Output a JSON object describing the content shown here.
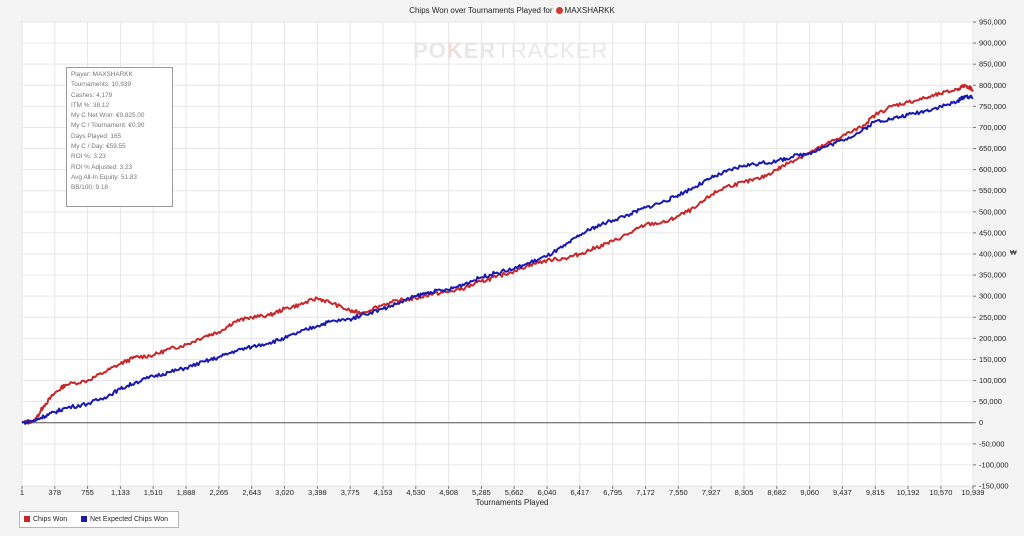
{
  "window": {
    "title": "Chips Won over Tournaments Played for",
    "player_tag": "MAXSHARKK",
    "brand_a": "PO",
    "brand_k": "K",
    "brand_b": "ER",
    "brand_c": "TRACKER",
    "y_unit": "₩"
  },
  "stats": [
    "Player: MAXSHARKK",
    "Tournaments: 10,939",
    "Cashes: 4,179",
    "ITM %: 38.12",
    "My C Net Won: €9,825.00",
    "My C / Tournament: €0.90",
    "Days Played: 165",
    "My C / Day: €59.55",
    "ROI %: 3.23",
    "ROI % Adjusted: 3.23",
    "Avg All-In Equity: 51.83",
    "BB/100: 9.18"
  ],
  "legend": {
    "chips_won": "Chips Won",
    "net_expected": "Net Expected Chips Won"
  },
  "colors": {
    "chips_won": "#c8282a",
    "net_expected": "#1a1ab0",
    "grid": "#e6e6e6",
    "zero_line": "#555555"
  },
  "chart_data": {
    "type": "line",
    "title": "Chips Won over Tournaments Played for MAXSHARKK",
    "xlabel": "Tournaments Played",
    "ylabel": "",
    "xlim": [
      1,
      10939
    ],
    "ylim": [
      -150000,
      950000
    ],
    "x_ticks": [
      1,
      378,
      755,
      1133,
      1510,
      1888,
      2265,
      2643,
      3020,
      3398,
      3775,
      4153,
      4530,
      4908,
      5285,
      5662,
      6040,
      6417,
      6795,
      7172,
      7550,
      7927,
      8305,
      8682,
      9060,
      9437,
      9815,
      10192,
      10570,
      10939
    ],
    "x_tick_labels": [
      "1",
      "378",
      "755",
      "1,133",
      "1,510",
      "1,888",
      "2,265",
      "2,643",
      "3,020",
      "3,398",
      "3,775",
      "4,153",
      "4,530",
      "4,908",
      "5,285",
      "5,662",
      "6,040",
      "6,417",
      "6,795",
      "7,172",
      "7,550",
      "7,927",
      "8,305",
      "8,682",
      "9,060",
      "9,437",
      "9,815",
      "10,192",
      "10,570",
      "10,939"
    ],
    "y_ticks": [
      -150000,
      -100000,
      -50000,
      0,
      50000,
      100000,
      150000,
      200000,
      250000,
      300000,
      350000,
      400000,
      450000,
      500000,
      550000,
      600000,
      650000,
      700000,
      750000,
      800000,
      850000,
      900000,
      950000
    ],
    "y_tick_labels": [
      "-150,000",
      "-100,000",
      "-50,000",
      "0",
      "50,000",
      "100,000",
      "150,000",
      "200,000",
      "250,000",
      "300,000",
      "350,000",
      "400,000",
      "450,000",
      "500,000",
      "550,000",
      "600,000",
      "650,000",
      "700,000",
      "750,000",
      "800,000",
      "850,000",
      "900,000",
      "950,000"
    ],
    "grid": true,
    "legend_position": "bottom-left",
    "series": [
      {
        "name": "Chips Won",
        "x": [
          1,
          150,
          250,
          378,
          500,
          755,
          950,
          1133,
          1300,
          1510,
          1700,
          1888,
          2100,
          2265,
          2450,
          2643,
          2850,
          3020,
          3200,
          3398,
          3550,
          3775,
          3900,
          4153,
          4350,
          4530,
          4700,
          4908,
          5100,
          5285,
          5450,
          5662,
          5850,
          6040,
          6250,
          6417,
          6600,
          6795,
          7000,
          7172,
          7400,
          7550,
          7750,
          7927,
          8100,
          8305,
          8500,
          8682,
          8850,
          9060,
          9250,
          9437,
          9650,
          9815,
          10000,
          10192,
          10400,
          10570,
          10750,
          10850,
          10939
        ],
        "y": [
          0,
          5000,
          40000,
          70000,
          90000,
          100000,
          120000,
          140000,
          155000,
          160000,
          175000,
          185000,
          205000,
          215000,
          240000,
          250000,
          255000,
          270000,
          280000,
          295000,
          285000,
          265000,
          260000,
          280000,
          290000,
          295000,
          305000,
          310000,
          320000,
          335000,
          345000,
          360000,
          375000,
          385000,
          390000,
          400000,
          415000,
          430000,
          450000,
          470000,
          475000,
          490000,
          510000,
          540000,
          560000,
          570000,
          580000,
          600000,
          620000,
          640000,
          660000,
          680000,
          700000,
          730000,
          750000,
          760000,
          770000,
          780000,
          790000,
          800000,
          790000
        ]
      },
      {
        "name": "Net Expected Chips Won",
        "x": [
          1,
          150,
          250,
          378,
          500,
          755,
          950,
          1133,
          1300,
          1510,
          1700,
          1888,
          2100,
          2265,
          2450,
          2643,
          2850,
          3020,
          3200,
          3398,
          3550,
          3775,
          3900,
          4153,
          4350,
          4530,
          4700,
          4908,
          5100,
          5285,
          5450,
          5662,
          5850,
          6040,
          6250,
          6417,
          6600,
          6795,
          7000,
          7172,
          7400,
          7550,
          7750,
          7927,
          8100,
          8305,
          8500,
          8682,
          8850,
          9060,
          9250,
          9437,
          9650,
          9815,
          10000,
          10192,
          10400,
          10570,
          10750,
          10850,
          10939
        ],
        "y": [
          0,
          5000,
          15000,
          25000,
          35000,
          45000,
          60000,
          80000,
          95000,
          110000,
          120000,
          130000,
          145000,
          155000,
          170000,
          180000,
          190000,
          200000,
          215000,
          230000,
          240000,
          245000,
          255000,
          270000,
          285000,
          300000,
          310000,
          315000,
          330000,
          345000,
          355000,
          365000,
          380000,
          395000,
          420000,
          445000,
          465000,
          480000,
          495000,
          510000,
          525000,
          540000,
          560000,
          580000,
          595000,
          610000,
          615000,
          620000,
          630000,
          640000,
          655000,
          670000,
          690000,
          715000,
          720000,
          730000,
          740000,
          750000,
          760000,
          775000,
          770000
        ]
      }
    ]
  }
}
